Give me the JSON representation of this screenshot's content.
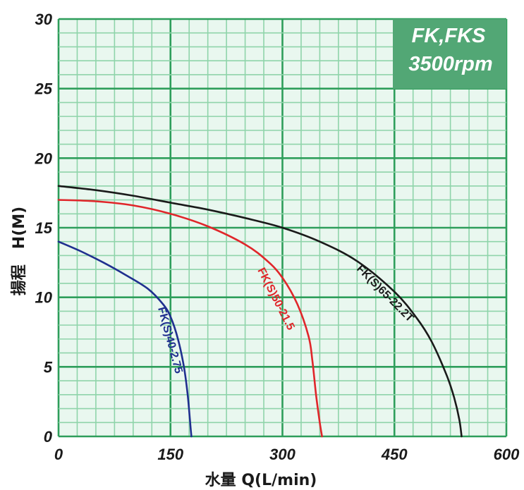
{
  "chart_data": {
    "type": "line",
    "title": "FK,FKS",
    "subtitle": "3500rpm",
    "xlabel": "水量 Q(L/min)",
    "ylabel": "揚程　H(M)",
    "xlim": [
      0,
      600
    ],
    "ylim": [
      0,
      30
    ],
    "x_ticks": [
      "0",
      "150",
      "300",
      "450",
      "600"
    ],
    "y_ticks": [
      "0",
      "5",
      "10",
      "15",
      "20",
      "25",
      "30"
    ],
    "grid": true,
    "colors": {
      "background": "#e9f7ef",
      "minor_grid": "#8fd4aa",
      "major_grid": "#2e9e5b",
      "badge": "#52a775"
    },
    "series": [
      {
        "name": "FK(S)40-2.75",
        "color": "#1f2f8f",
        "x": [
          0,
          30,
          60,
          90,
          120,
          140,
          150,
          160,
          168,
          173,
          176,
          178
        ],
        "y": [
          14,
          13.3,
          12.5,
          11.6,
          10.6,
          9.5,
          8.6,
          7.0,
          5.0,
          3.0,
          1.2,
          0
        ]
      },
      {
        "name": "FK(S)50-21.5",
        "color": "#e0262a",
        "x": [
          0,
          50,
          100,
          150,
          200,
          250,
          280,
          300,
          320,
          335,
          340,
          345,
          350,
          353
        ],
        "y": [
          17,
          16.9,
          16.6,
          16.0,
          15.1,
          13.8,
          12.6,
          11.4,
          9.5,
          7.2,
          5.5,
          3.0,
          1.0,
          0
        ]
      },
      {
        "name": "FK(S)65-22.2T",
        "color": "#1a1a1a",
        "x": [
          0,
          50,
          100,
          150,
          200,
          250,
          300,
          350,
          400,
          450,
          480,
          500,
          520,
          530,
          537,
          540
        ],
        "y": [
          18,
          17.7,
          17.3,
          16.8,
          16.3,
          15.7,
          15.0,
          14.0,
          12.6,
          10.4,
          8.5,
          6.8,
          4.4,
          2.8,
          1.2,
          0
        ]
      }
    ]
  }
}
